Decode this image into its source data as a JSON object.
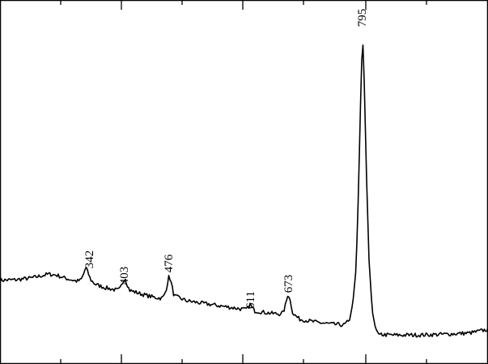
{
  "chart_data": {
    "type": "line",
    "title": "",
    "xlabel": "",
    "ylabel": "",
    "grid": false,
    "legend": "none",
    "peak_labels": [
      "342",
      "403",
      "476",
      "611",
      "673",
      "795"
    ],
    "series": [
      {
        "x": [
          0,
          20,
          40,
          60,
          70,
          80,
          95,
          100,
          103,
          106,
          109,
          112,
          118,
          130,
          145,
          148,
          151,
          154,
          157,
          160,
          175,
          190,
          200,
          203,
          206,
          209,
          212,
          215,
          230,
          250,
          270,
          290,
          303,
          306,
          309,
          312,
          315,
          320,
          335,
          345,
          350,
          353,
          356,
          359,
          362,
          370,
          390,
          410,
          425,
          432,
          436,
          440,
          443,
          446,
          448,
          450,
          453,
          456,
          460,
          464,
          468,
          475,
          490,
          520,
          550,
          580,
          590,
          603
        ],
        "y": [
          93.3,
          93.9,
          96.3,
          100.9,
          99.6,
          96.0,
          92.1,
          93.6,
          100.0,
          109.4,
          101.9,
          93.9,
          88.2,
          84.1,
          81.0,
          82.2,
          88.9,
          96.5,
          88.9,
          81.0,
          76.2,
          72.3,
          71.1,
          74.5,
          84.9,
          99.5,
          88.3,
          74.2,
          68.1,
          64.9,
          62.0,
          59.1,
          57.1,
          58.8,
          63.6,
          58.8,
          55.4,
          54.7,
          52.5,
          51.8,
          53.3,
          63.6,
          77.6,
          66.4,
          52.2,
          45.4,
          41.6,
          39.2,
          38.0,
          44.2,
          65.5,
          108.0,
          205.0,
          332.0,
          398.0,
          340.0,
          218.0,
          118.0,
          55.0,
          34.0,
          27.1,
          26.0,
          25.6,
          25.8,
          26.7,
          28.2,
          30.0,
          32.8
        ]
      }
    ]
  }
}
